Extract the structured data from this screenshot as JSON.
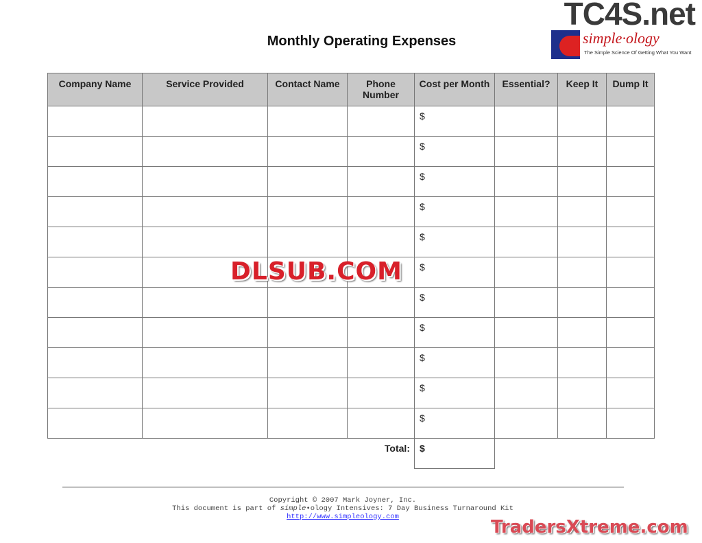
{
  "document": {
    "title": "Monthly Operating Expenses"
  },
  "table": {
    "headers": [
      "Company Name",
      "Service Provided",
      "Contact Name",
      "Phone Number",
      "Cost per Month",
      "Essential?",
      "Keep It",
      "Dump It"
    ],
    "rows": [
      [
        "",
        "",
        "",
        "",
        "$",
        "",
        "",
        ""
      ],
      [
        "",
        "",
        "",
        "",
        "$",
        "",
        "",
        ""
      ],
      [
        "",
        "",
        "",
        "",
        "$",
        "",
        "",
        ""
      ],
      [
        "",
        "",
        "",
        "",
        "$",
        "",
        "",
        ""
      ],
      [
        "",
        "",
        "",
        "",
        "$",
        "",
        "",
        ""
      ],
      [
        "",
        "",
        "",
        "",
        "$",
        "",
        "",
        ""
      ],
      [
        "",
        "",
        "",
        "",
        "$",
        "",
        "",
        ""
      ],
      [
        "",
        "",
        "",
        "",
        "$",
        "",
        "",
        ""
      ],
      [
        "",
        "",
        "",
        "",
        "$",
        "",
        "",
        ""
      ],
      [
        "",
        "",
        "",
        "",
        "$",
        "",
        "",
        ""
      ],
      [
        "",
        "",
        "",
        "",
        "$",
        "",
        "",
        ""
      ]
    ],
    "total_label": "Total:",
    "total_value": "$"
  },
  "footer": {
    "copyright": "Copyright © 2007 Mark Joyner, Inc.",
    "line2_prefix": "This document is part of ",
    "line2_brand_italic": "simple",
    "line2_suffix": "•ology Intensives: 7 Day Business Turnaround Kit",
    "link": "http://www.simpleology.com"
  },
  "logo": {
    "site": "TC4S.net",
    "brand": "simple·ology",
    "tagline": "The Simple Science Of Getting What You Want"
  },
  "watermarks": {
    "center": "DLSUB.COM",
    "bottom": "TradersXtreme.com"
  }
}
